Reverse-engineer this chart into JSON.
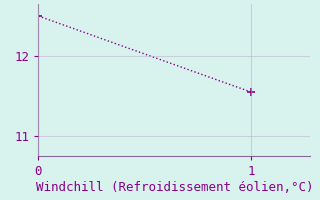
{
  "x": [
    0,
    1
  ],
  "y": [
    12.5,
    11.55
  ],
  "line_color": "#880088",
  "marker": "+",
  "marker_size": 6,
  "marker_color": "#880088",
  "background_color": "#d8f2ee",
  "grid_color": "#bbaacc",
  "spine_color": "#886699",
  "xlabel": "Windchill (Refroidissement éolien,°C)",
  "xlabel_color": "#880088",
  "xlabel_fontsize": 9,
  "tick_color": "#880088",
  "tick_fontsize": 9,
  "ylim": [
    10.75,
    12.65
  ],
  "xlim": [
    0,
    1.28
  ],
  "yticks": [
    11,
    12
  ],
  "xticks": [
    0,
    1
  ],
  "grid_alpha": 0.5,
  "linewidth": 1.0,
  "linestyle": ":"
}
